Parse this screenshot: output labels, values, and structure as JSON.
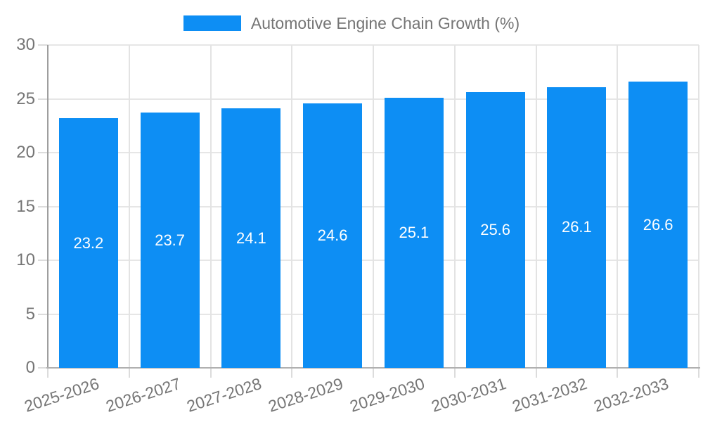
{
  "legend": {
    "series_label": "Automotive Engine Chain Growth (%)"
  },
  "chart_data": {
    "type": "bar",
    "title": "Automotive Engine Chain Growth (%)",
    "categories": [
      "2025-2026",
      "2026-2027",
      "2027-2028",
      "2028-2029",
      "2029-2030",
      "2030-2031",
      "2031-2032",
      "2032-2033"
    ],
    "values": [
      23.2,
      23.7,
      24.1,
      24.6,
      25.1,
      25.6,
      26.1,
      26.6
    ],
    "data_labels": [
      "23.2",
      "23.7",
      "24.1",
      "24.6",
      "25.1",
      "25.6",
      "26.1",
      "26.6"
    ],
    "xlabel": "",
    "ylabel": "",
    "ylim": [
      0,
      30
    ],
    "yticks": [
      0,
      5,
      10,
      15,
      20,
      25,
      30
    ],
    "grid": "horizontal and vertical category-boundary gridlines",
    "legend_position": "top-center",
    "bar_color": "#0d8ef4",
    "bar_label_color": "#ffffff",
    "axis_text_color": "#757575",
    "gridline_color": "#e6e6e6"
  }
}
